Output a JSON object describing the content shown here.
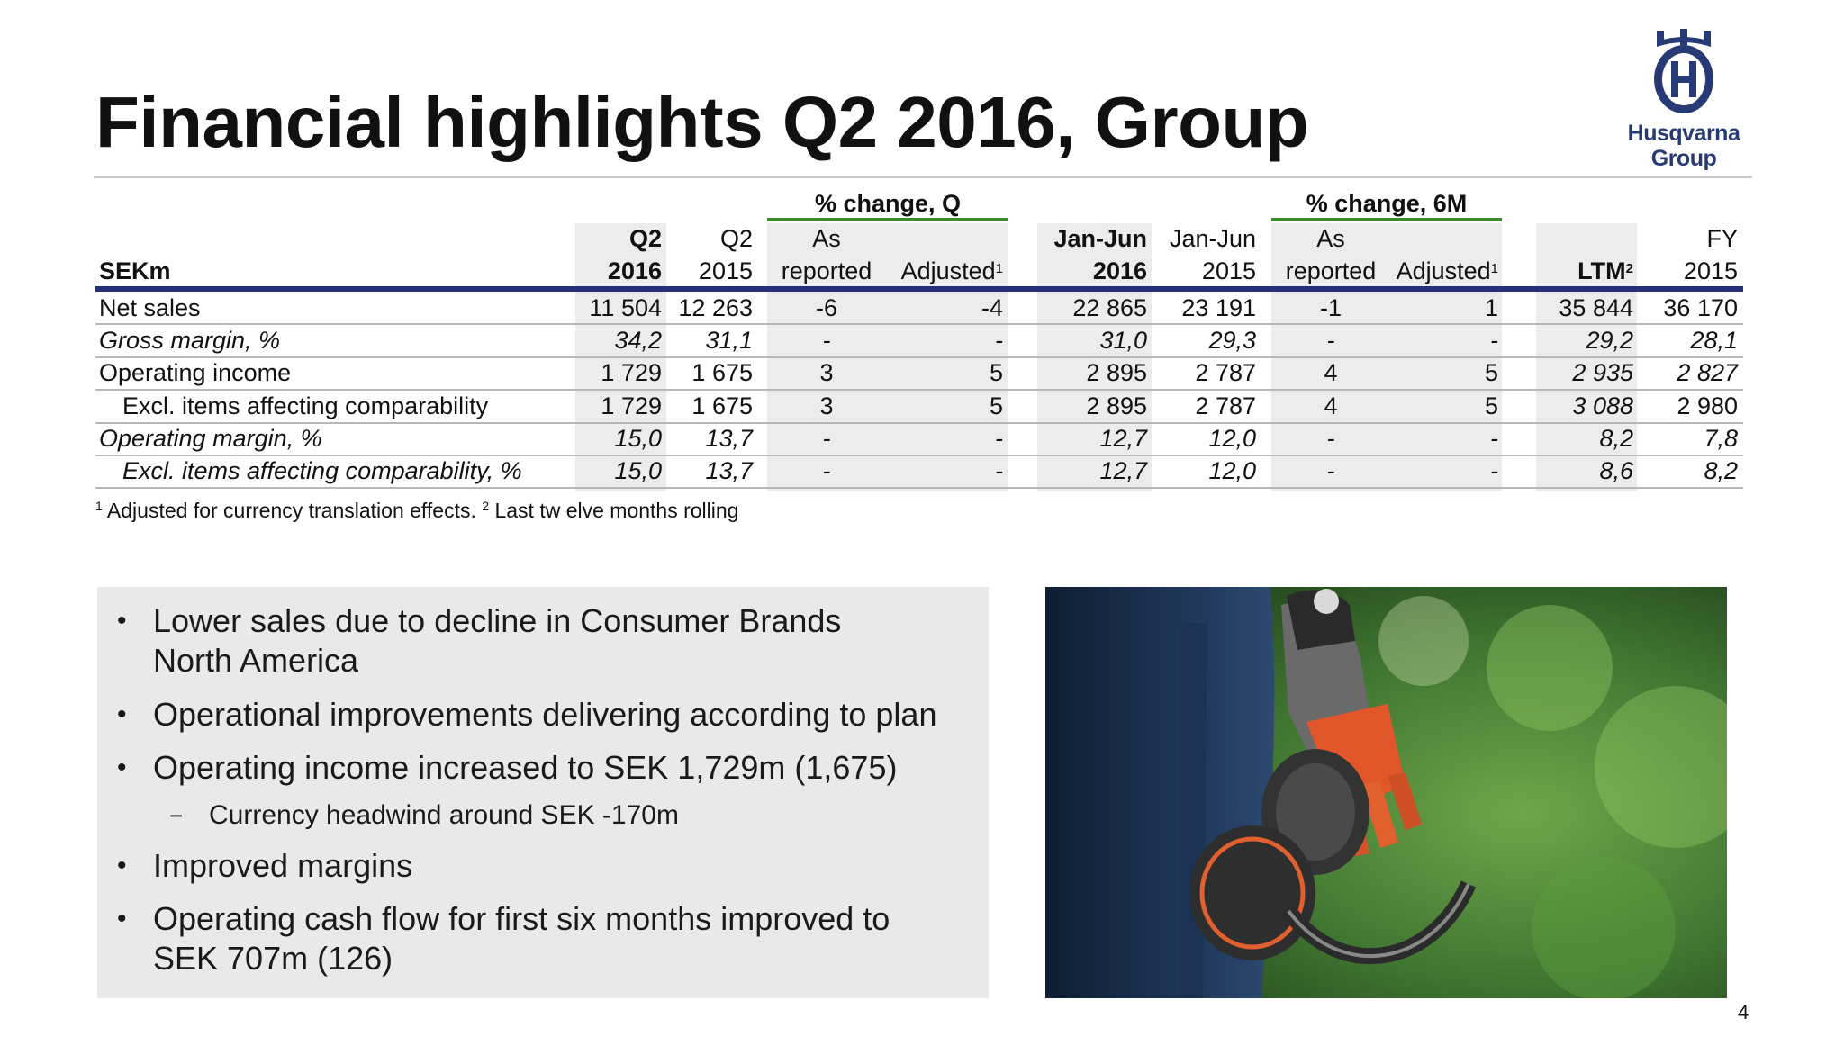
{
  "title": "Financial highlights Q2 2016, Group",
  "logo": {
    "line1": "Husqvarna",
    "line2": "Group"
  },
  "table": {
    "unit_label": "SEKm",
    "group_q": "% change, Q",
    "group_6m": "% change, 6M",
    "headers": {
      "q2_2016": [
        "Q2",
        "2016"
      ],
      "q2_2015": [
        "Q2",
        "2015"
      ],
      "q_as_reported": [
        "As",
        "reported"
      ],
      "q_adjusted": "Adjusted",
      "jj_2016": [
        "Jan-Jun",
        "2016"
      ],
      "jj_2015": [
        "Jan-Jun",
        "2015"
      ],
      "m6_as_reported": [
        "As",
        "reported"
      ],
      "m6_adjusted": "Adjusted",
      "ltm": "LTM",
      "fy_2015": [
        "FY",
        "2015"
      ],
      "sup1": "1",
      "sup2": "2"
    },
    "rows": [
      {
        "label": "Net sales",
        "values": [
          "11 504",
          "12 263",
          "-6",
          "-4",
          "22 865",
          "23 191",
          "-1",
          "1",
          "35 844",
          "36 170"
        ]
      },
      {
        "label": "Gross margin, %",
        "values": [
          "34,2",
          "31,1",
          "-",
          "-",
          "31,0",
          "29,3",
          "-",
          "-",
          "29,2",
          "28,1"
        ]
      },
      {
        "label": "Operating income",
        "values": [
          "1 729",
          "1 675",
          "3",
          "5",
          "2 895",
          "2 787",
          "4",
          "5",
          "2 935",
          "2 827"
        ]
      },
      {
        "label": "Excl. items affecting comparability",
        "values": [
          "1 729",
          "1 675",
          "3",
          "5",
          "2 895",
          "2 787",
          "4",
          "5",
          "3 088",
          "2 980"
        ]
      },
      {
        "label": "Operating margin, %",
        "values": [
          "15,0",
          "13,7",
          "-",
          "-",
          "12,7",
          "12,0",
          "-",
          "-",
          "8,2",
          "7,8"
        ]
      },
      {
        "label": "Excl. items affecting comparability, %",
        "values": [
          "15,0",
          "13,7",
          "-",
          "-",
          "12,7",
          "12,0",
          "-",
          "-",
          "8,6",
          "8,2"
        ]
      }
    ],
    "footnote": {
      "sup1": "1",
      "text1": "Adjusted for currency translation effects.",
      "sup2": "2",
      "text2": "Last tw elve months rolling"
    }
  },
  "bullets": [
    "Lower sales due to decline in Consumer Brands North America",
    "Operational improvements delivering according to plan",
    "Operating income increased to SEK 1,729m (1,675)",
    "Currency headwind around SEK -170m",
    "Improved margins",
    "Operating cash flow for first six months improved to SEK 707m (126)"
  ],
  "bullet_glyph": "•",
  "sub_bullet_glyph": "−",
  "photo_icon": "person-holding-gloves-and-ear-protection-photo",
  "page_number": "4",
  "colors": {
    "brand_blue": "#22317a",
    "accent_green": "#3c8a2e",
    "shade_gray": "#ececec"
  }
}
